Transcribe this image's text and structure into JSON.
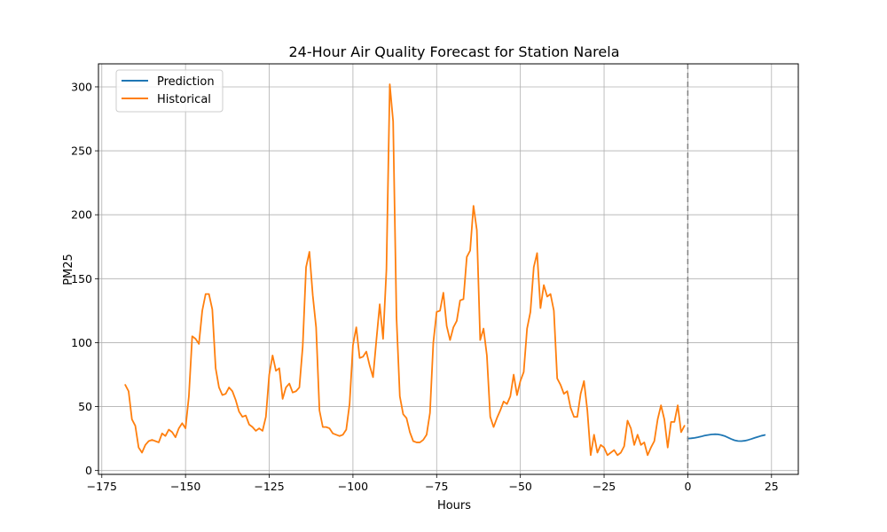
{
  "chart_data": {
    "type": "line",
    "title": "24-Hour Air Quality Forecast for Station Narela",
    "xlabel": "Hours",
    "ylabel": "PM25",
    "xlim": [
      -176,
      33
    ],
    "ylim": [
      -3,
      318
    ],
    "xticks": [
      -175,
      -150,
      -125,
      -100,
      -75,
      -50,
      -25,
      0,
      25
    ],
    "yticks": [
      0,
      50,
      100,
      150,
      200,
      250,
      300
    ],
    "grid": true,
    "legend_position": "top-left",
    "vline": {
      "x": 0,
      "style": "dashed",
      "color": "#808080"
    },
    "series": [
      {
        "name": "Prediction",
        "color": "#1f77b4",
        "x": [
          0,
          1,
          2,
          3,
          4,
          5,
          6,
          7,
          8,
          9,
          10,
          11,
          12,
          13,
          14,
          15,
          16,
          17,
          18,
          19,
          20,
          21,
          22,
          23
        ],
        "y": [
          25,
          25.2,
          25.5,
          26,
          26.6,
          27.3,
          27.8,
          28.2,
          28.4,
          28.3,
          27.8,
          27,
          25.8,
          24.6,
          23.6,
          23.1,
          23,
          23.3,
          23.9,
          24.7,
          25.6,
          26.4,
          27.2,
          27.8
        ]
      },
      {
        "name": "Historical",
        "color": "#ff7f0e",
        "x": [
          -168,
          -167,
          -166,
          -165,
          -164,
          -163,
          -162,
          -161,
          -160,
          -159,
          -158,
          -157,
          -156,
          -155,
          -154,
          -153,
          -152,
          -151,
          -150,
          -149,
          -148,
          -147,
          -146,
          -145,
          -144,
          -143,
          -142,
          -141,
          -140,
          -139,
          -138,
          -137,
          -136,
          -135,
          -134,
          -133,
          -132,
          -131,
          -130,
          -129,
          -128,
          -127,
          -126,
          -125,
          -124,
          -123,
          -122,
          -121,
          -120,
          -119,
          -118,
          -117,
          -116,
          -115,
          -114,
          -113,
          -112,
          -111,
          -110,
          -109,
          -108,
          -107,
          -106,
          -105,
          -104,
          -103,
          -102,
          -101,
          -100,
          -99,
          -98,
          -97,
          -96,
          -95,
          -94,
          -93,
          -92,
          -91,
          -90,
          -89,
          -88,
          -87,
          -86,
          -85,
          -84,
          -83,
          -82,
          -81,
          -80,
          -79,
          -78,
          -77,
          -76,
          -75,
          -74,
          -73,
          -72,
          -71,
          -70,
          -69,
          -68,
          -67,
          -66,
          -65,
          -64,
          -63,
          -62,
          -61,
          -60,
          -59,
          -58,
          -57,
          -56,
          -55,
          -54,
          -53,
          -52,
          -51,
          -50,
          -49,
          -48,
          -47,
          -46,
          -45,
          -44,
          -43,
          -42,
          -41,
          -40,
          -39,
          -38,
          -37,
          -36,
          -35,
          -34,
          -33,
          -32,
          -31,
          -30,
          -29,
          -28,
          -27,
          -26,
          -25,
          -24,
          -23,
          -22,
          -21,
          -20,
          -19,
          -18,
          -17,
          -16,
          -15,
          -14,
          -13,
          -12,
          -11,
          -10,
          -9,
          -8,
          -7,
          -6,
          -5,
          -4,
          -3,
          -2,
          -1
        ],
        "y": [
          67,
          62,
          40,
          35,
          18,
          14,
          20,
          23,
          24,
          23,
          22,
          29,
          27,
          32,
          30,
          26,
          33,
          37,
          33,
          58,
          105,
          103,
          99,
          125,
          138,
          138,
          126,
          80,
          65,
          59,
          60,
          65,
          62,
          55,
          46,
          42,
          43,
          36,
          34,
          31,
          33,
          31,
          42,
          75,
          90,
          78,
          80,
          56,
          65,
          68,
          61,
          62,
          65,
          97,
          159,
          171,
          137,
          112,
          47,
          34,
          34,
          33,
          29,
          28,
          27,
          28,
          32,
          52,
          98,
          112,
          88,
          89,
          93,
          82,
          73,
          102,
          130,
          103,
          157,
          302,
          273,
          120,
          58,
          44,
          41,
          30,
          23,
          22,
          22,
          24,
          28,
          45,
          100,
          124,
          125,
          139,
          113,
          102,
          112,
          117,
          133,
          134,
          167,
          172,
          207,
          188,
          102,
          111,
          90,
          42,
          34,
          41,
          47,
          54,
          52,
          58,
          75,
          59,
          70,
          77,
          111,
          124,
          159,
          170,
          127,
          145,
          136,
          138,
          125,
          72,
          67,
          60,
          62,
          49,
          42,
          42,
          60,
          70,
          47,
          12,
          28,
          14,
          20,
          18,
          12,
          14,
          16,
          12,
          14,
          19,
          39,
          33,
          20,
          28,
          20,
          22,
          12,
          18,
          23,
          40,
          51,
          40,
          18,
          38,
          38,
          51,
          30,
          35
        ]
      }
    ]
  }
}
